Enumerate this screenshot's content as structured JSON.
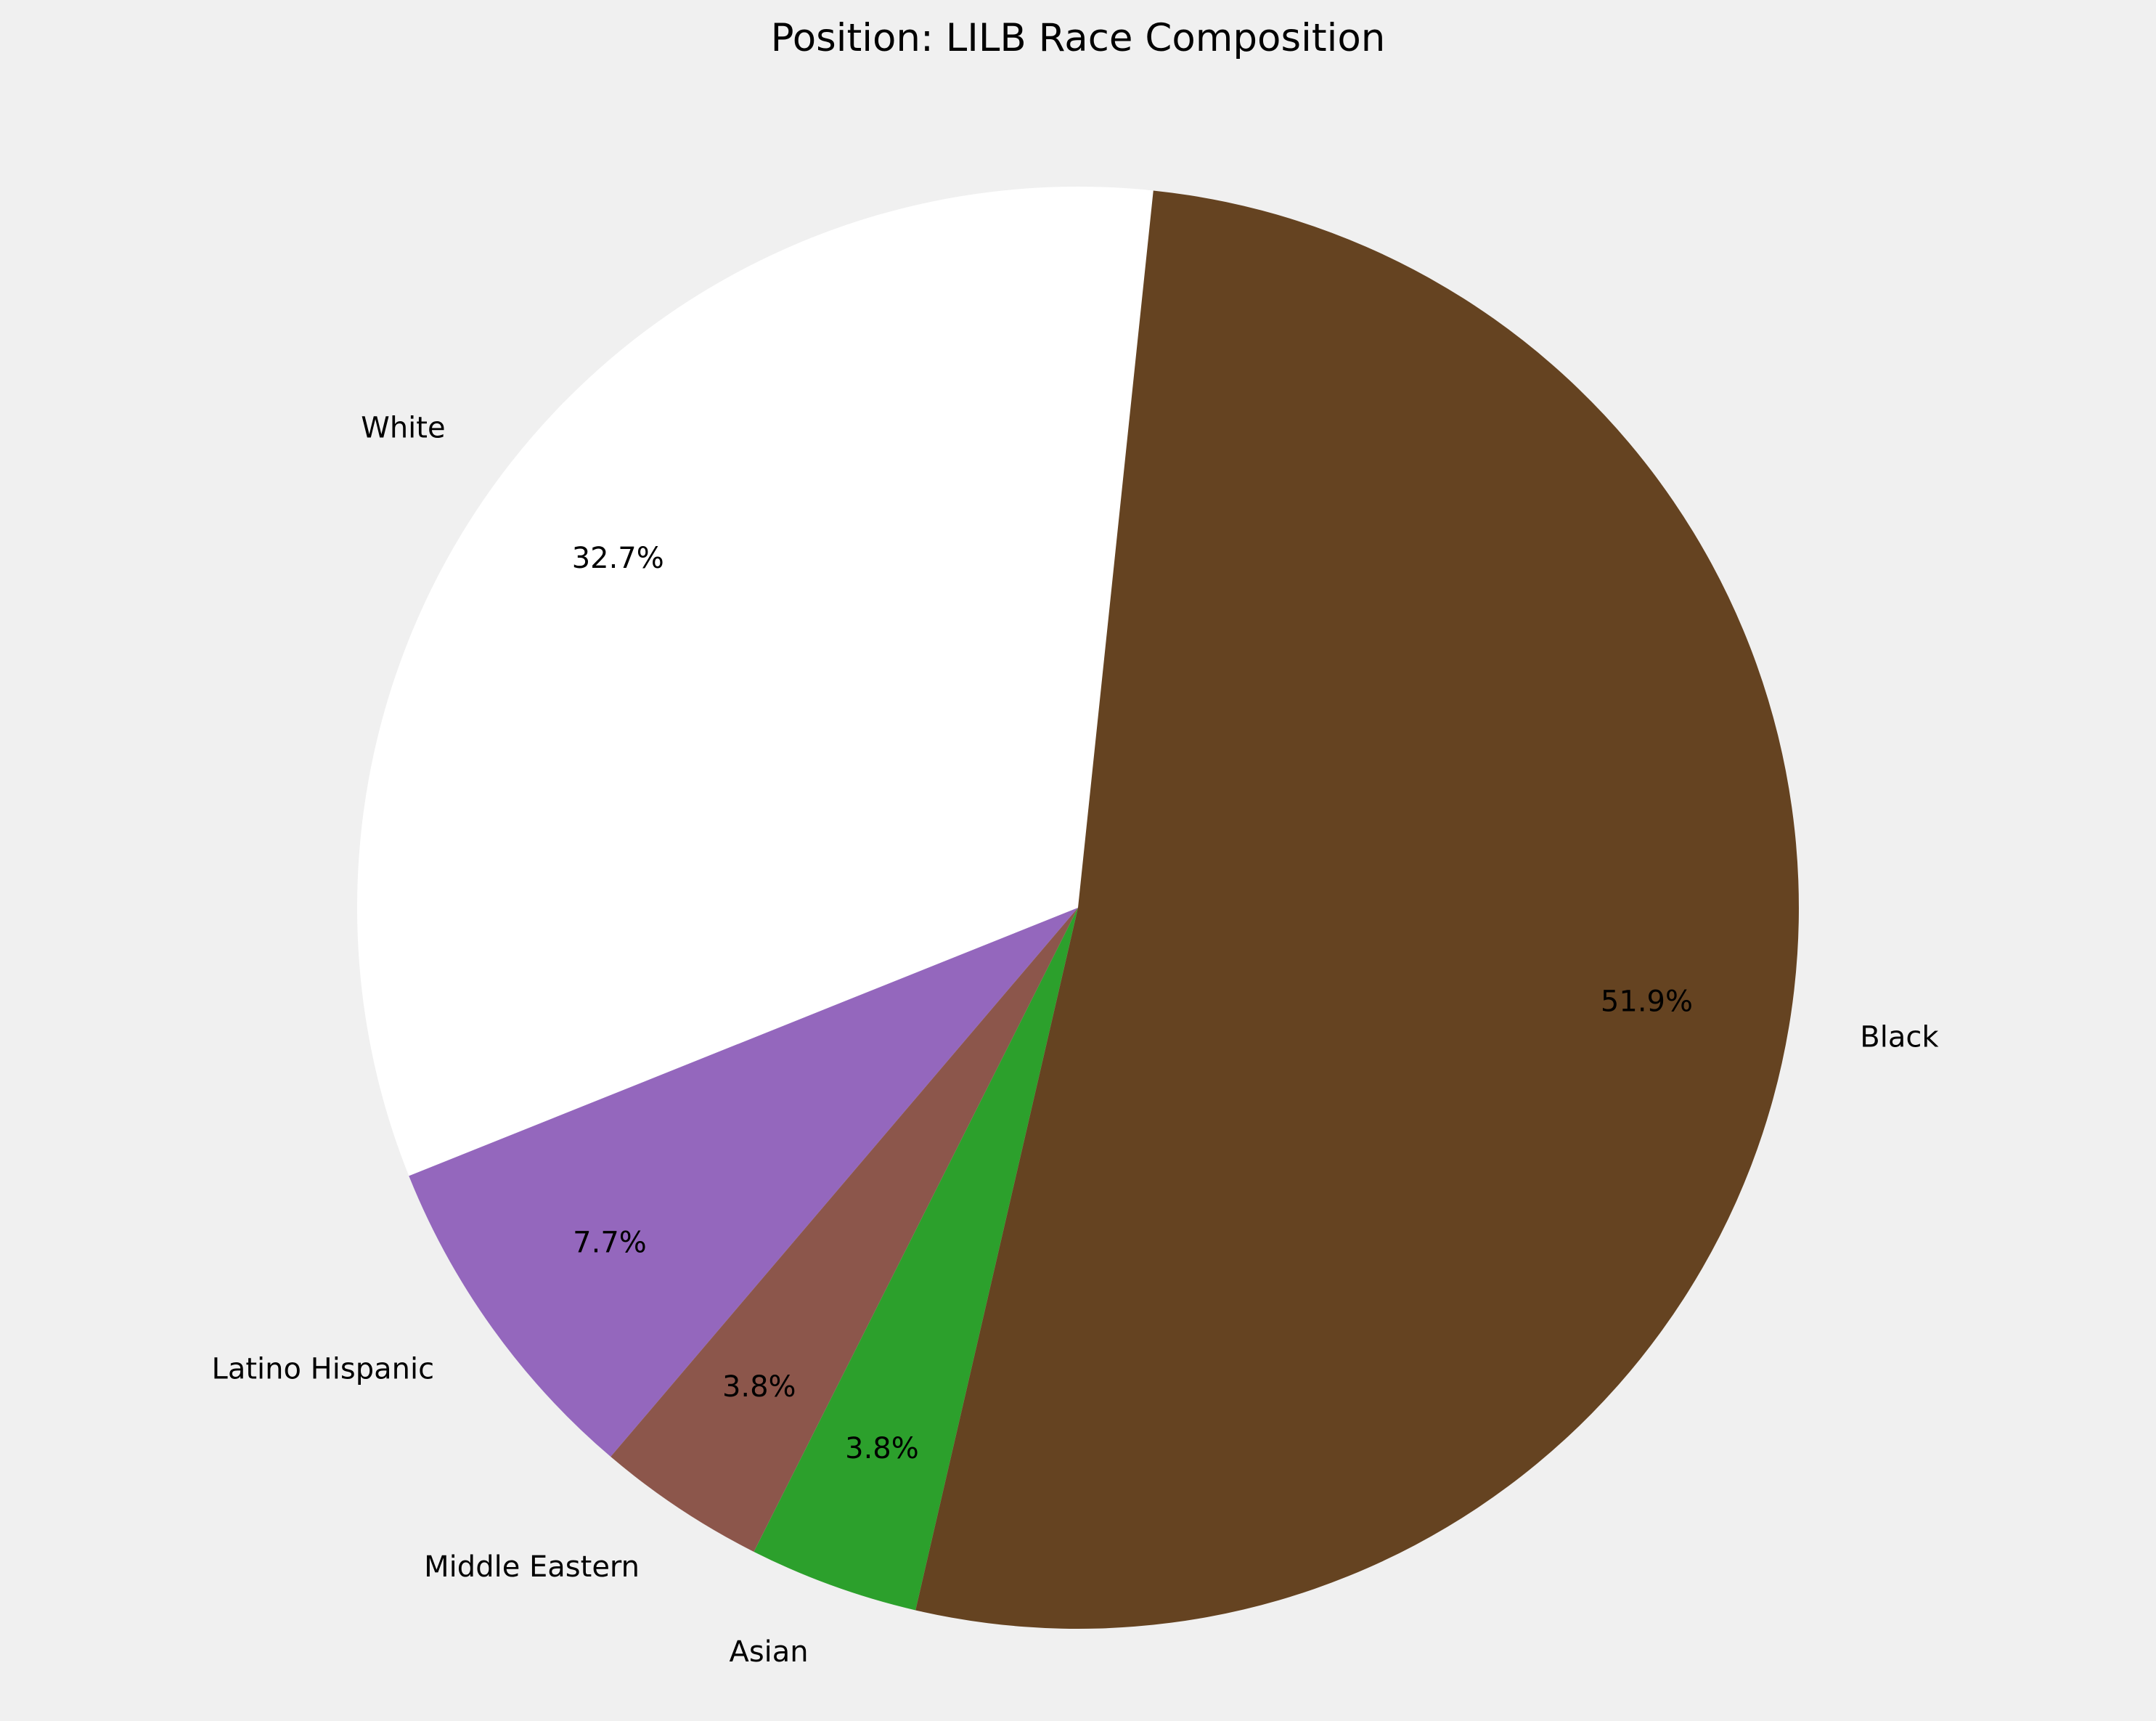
{
  "chart_data": {
    "type": "pie",
    "title": "Position: LILB Race Composition",
    "categories": [
      "White",
      "Latino Hispanic",
      "Middle Eastern",
      "Asian",
      "Black"
    ],
    "values": [
      32.7,
      7.7,
      3.8,
      3.8,
      51.9
    ],
    "value_labels": [
      "32.7%",
      "7.7%",
      "3.8%",
      "3.8%",
      "51.9%"
    ],
    "colors": [
      "#ffffff",
      "#9467bd",
      "#8c564b",
      "#2ca02c",
      "#654321"
    ],
    "start_angle_deg": 84,
    "direction": "counterclockwise",
    "legend": "none"
  }
}
